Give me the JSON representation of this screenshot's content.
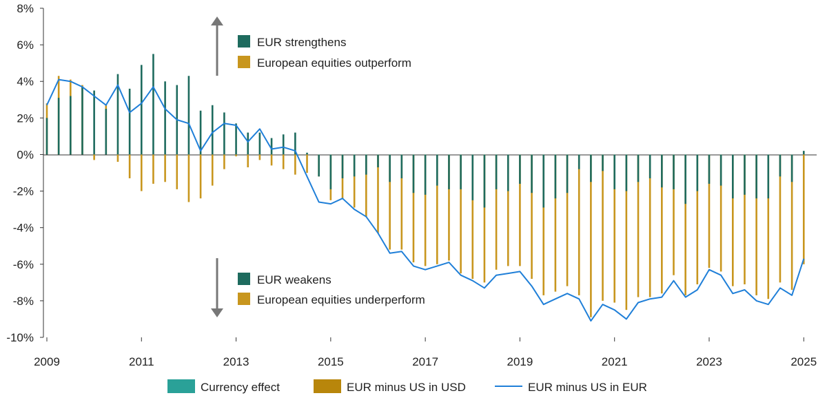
{
  "chart_data": {
    "type": "bar",
    "title": "",
    "xlabel": "",
    "ylabel": "",
    "ylim": [
      -10,
      8
    ],
    "y_ticks": [
      -10,
      -8,
      -6,
      -4,
      -2,
      0,
      2,
      4,
      6,
      8
    ],
    "y_tick_suffix": "%",
    "x_range": [
      2009.0,
      2025.2
    ],
    "x_ticks": [
      2009,
      2011,
      2013,
      2015,
      2017,
      2019,
      2021,
      2023,
      2025
    ],
    "grid": false,
    "bar_style": "thin stacked vertical bars per quarter",
    "x": [
      2009.0,
      2009.25,
      2009.5,
      2009.75,
      2010.0,
      2010.25,
      2010.5,
      2010.75,
      2011.0,
      2011.25,
      2011.5,
      2011.75,
      2012.0,
      2012.25,
      2012.5,
      2012.75,
      2013.0,
      2013.25,
      2013.5,
      2013.75,
      2014.0,
      2014.25,
      2014.5,
      2014.75,
      2015.0,
      2015.25,
      2015.5,
      2015.75,
      2016.0,
      2016.25,
      2016.5,
      2016.75,
      2017.0,
      2017.25,
      2017.5,
      2017.75,
      2018.0,
      2018.25,
      2018.5,
      2018.75,
      2019.0,
      2019.25,
      2019.5,
      2019.75,
      2020.0,
      2020.25,
      2020.5,
      2020.75,
      2021.0,
      2021.25,
      2021.5,
      2021.75,
      2022.0,
      2022.25,
      2022.5,
      2022.75,
      2023.0,
      2023.25,
      2023.5,
      2023.75,
      2024.0,
      2024.25,
      2024.5,
      2024.75,
      2025.0
    ],
    "series": [
      {
        "name": "Currency effect",
        "color": "#2aa198",
        "values": [
          2.0,
          3.1,
          3.2,
          3.7,
          3.5,
          2.5,
          4.4,
          3.6,
          4.9,
          5.5,
          4.0,
          3.8,
          4.3,
          2.4,
          2.7,
          2.3,
          1.7,
          1.2,
          1.2,
          0.9,
          1.1,
          1.2,
          0.1,
          -1.2,
          -1.9,
          -1.3,
          -1.2,
          -1.1,
          -0.7,
          -1.5,
          -1.3,
          -2.1,
          -2.2,
          -1.7,
          -1.9,
          -1.9,
          -2.5,
          -2.9,
          -1.9,
          -2.0,
          -1.6,
          -2.1,
          -2.9,
          -2.4,
          -2.1,
          -0.8,
          -1.5,
          -0.9,
          -1.9,
          -2.0,
          -1.5,
          -1.3,
          -1.8,
          -1.9,
          -2.7,
          -2.0,
          -1.6,
          -1.7,
          -2.4,
          -2.2,
          -2.4,
          -2.4,
          -1.2,
          -1.5,
          0.2
        ]
      },
      {
        "name": "EUR minus US in USD",
        "color": "#b8860b",
        "values": [
          2.8,
          4.3,
          4.1,
          3.8,
          -0.3,
          2.7,
          -0.4,
          -1.3,
          -2.0,
          -1.6,
          -1.5,
          -1.9,
          -2.6,
          -2.4,
          -1.7,
          -0.8,
          -0.1,
          -0.7,
          -0.3,
          -0.6,
          -0.8,
          -1.1,
          -1.0,
          -1.2,
          -2.5,
          -2.4,
          -2.9,
          -3.4,
          -4.3,
          -5.2,
          -5.2,
          -5.9,
          -6.1,
          -6.0,
          -5.8,
          -6.5,
          -6.8,
          -7.0,
          -6.3,
          -6.1,
          -6.1,
          -6.8,
          -7.7,
          -7.5,
          -7.2,
          -7.7,
          -8.9,
          -8.0,
          -8.1,
          -8.5,
          -7.8,
          -7.8,
          -7.6,
          -6.6,
          -7.7,
          -7.1,
          -6.2,
          -6.4,
          -7.2,
          -7.1,
          -7.7,
          -7.9,
          -7.0,
          -7.4,
          -6.0
        ]
      },
      {
        "name": "EUR minus US in EUR",
        "color": "#1f7fd8",
        "type": "line",
        "values": [
          2.7,
          4.1,
          4.0,
          3.7,
          3.2,
          2.7,
          3.8,
          2.3,
          2.8,
          3.7,
          2.5,
          1.9,
          1.7,
          0.2,
          1.2,
          1.7,
          1.6,
          0.7,
          1.4,
          0.3,
          0.4,
          0.2,
          -1.2,
          -2.6,
          -2.7,
          -2.4,
          -3.0,
          -3.4,
          -4.3,
          -5.4,
          -5.3,
          -6.1,
          -6.3,
          -6.1,
          -5.9,
          -6.6,
          -6.9,
          -7.3,
          -6.6,
          -6.5,
          -6.4,
          -7.2,
          -8.2,
          -7.9,
          -7.6,
          -7.9,
          -9.1,
          -8.2,
          -8.5,
          -9.0,
          -8.1,
          -7.9,
          -7.8,
          -6.9,
          -7.8,
          -7.4,
          -6.3,
          -6.6,
          -7.6,
          -7.4,
          -8.0,
          -8.2,
          -7.3,
          -7.7,
          -5.7
        ]
      }
    ],
    "legend": {
      "placement": "bottom",
      "items": [
        "Currency effect",
        "EUR minus US in USD",
        "EUR minus US in EUR"
      ]
    },
    "annotations": {
      "upper": [
        "EUR strengthens",
        "European equities outperform"
      ],
      "lower": [
        "EUR weakens",
        "European equities underperform"
      ]
    },
    "annotation_colors": {
      "strengthens_swatch": "#1e6b5e",
      "outperform_swatch": "#c8961e",
      "arrow": "#777777"
    }
  }
}
